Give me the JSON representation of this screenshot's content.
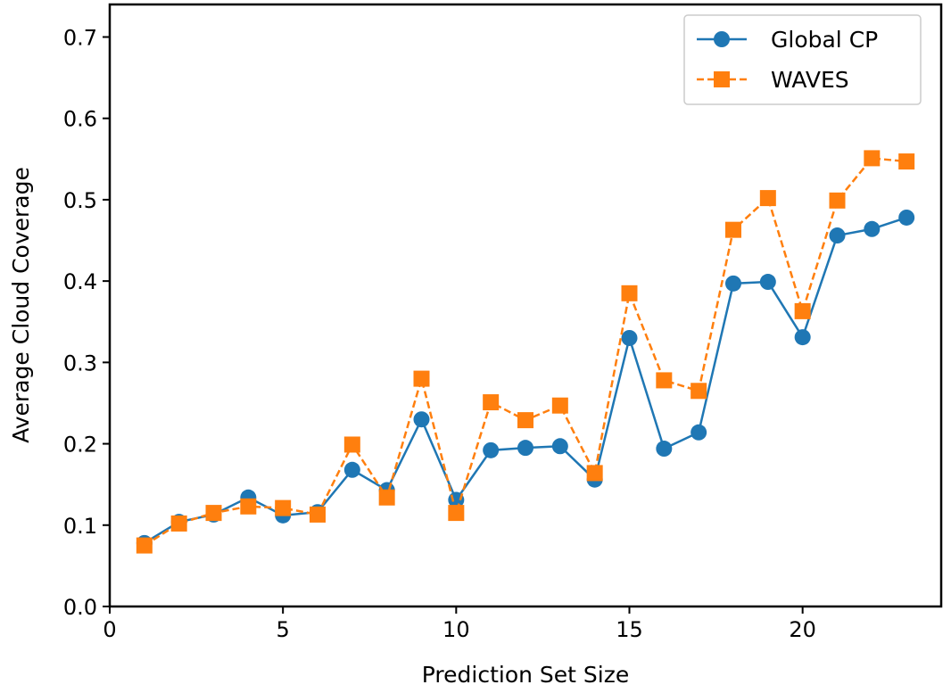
{
  "chart_data": {
    "type": "line",
    "title": "",
    "xlabel": "Prediction Set Size",
    "ylabel": "Average Cloud Coverage",
    "xlim": [
      0,
      24
    ],
    "ylim": [
      0.0,
      0.74
    ],
    "xticks": [
      0,
      5,
      10,
      15,
      20
    ],
    "xtick_labels": [
      "0",
      "5",
      "10",
      "15",
      "20"
    ],
    "yticks": [
      0.0,
      0.1,
      0.2,
      0.3,
      0.4,
      0.5,
      0.6,
      0.7
    ],
    "ytick_labels": [
      "0.0",
      "0.1",
      "0.2",
      "0.3",
      "0.4",
      "0.5",
      "0.6",
      "0.7"
    ],
    "grid": false,
    "legend_position": "top-right",
    "x": [
      1,
      2,
      3,
      4,
      5,
      6,
      7,
      8,
      9,
      10,
      11,
      12,
      13,
      14,
      15,
      16,
      17,
      18,
      19,
      20,
      21,
      22,
      23
    ],
    "series": [
      {
        "name": "Global CP",
        "color": "#1f77b4",
        "marker": "circle",
        "line_style": "solid",
        "values": [
          0.078,
          0.104,
          0.113,
          0.134,
          0.112,
          0.116,
          0.168,
          0.143,
          0.23,
          0.131,
          0.192,
          0.195,
          0.197,
          0.156,
          0.33,
          0.194,
          0.214,
          0.397,
          0.399,
          0.331,
          0.456,
          0.464,
          0.478
        ]
      },
      {
        "name": "WAVES",
        "color": "#ff7f0e",
        "marker": "square",
        "line_style": "dashed",
        "values": [
          0.075,
          0.102,
          0.115,
          0.123,
          0.121,
          0.113,
          0.199,
          0.134,
          0.28,
          0.115,
          0.251,
          0.229,
          0.247,
          0.164,
          0.385,
          0.278,
          0.265,
          0.463,
          0.502,
          0.363,
          0.499,
          0.551,
          0.547
        ]
      }
    ]
  }
}
